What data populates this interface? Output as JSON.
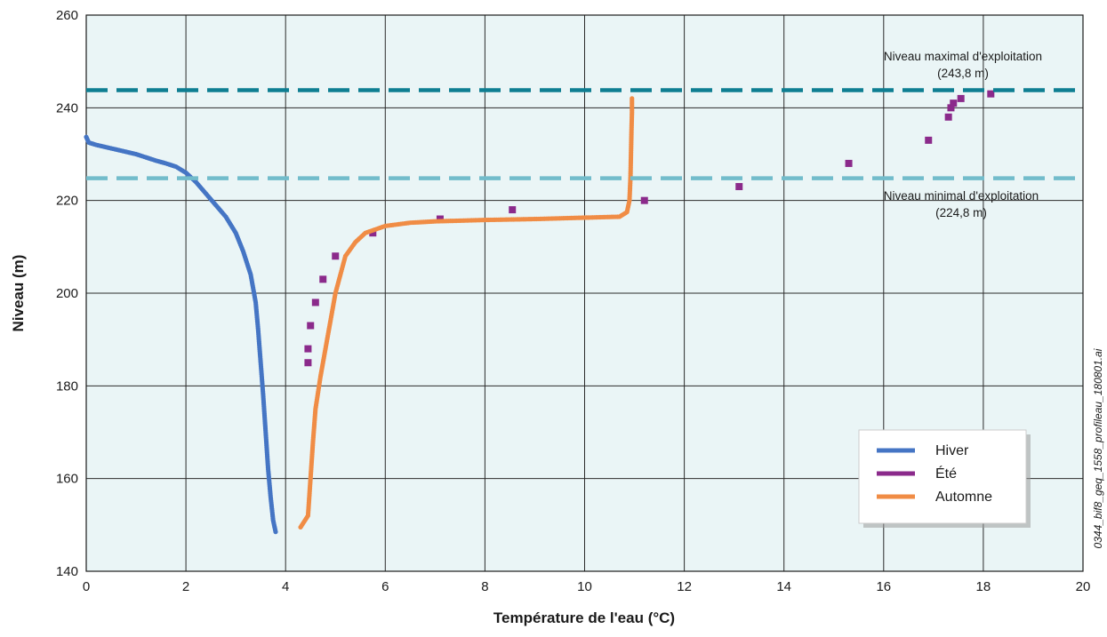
{
  "chart_data": {
    "type": "scatter",
    "xlabel": "Température de l'eau (°C)",
    "ylabel": "Niveau (m)",
    "xlim": [
      0,
      20
    ],
    "ylim": [
      140,
      260
    ],
    "xticks": [
      0,
      2,
      4,
      6,
      8,
      10,
      12,
      14,
      16,
      18,
      20
    ],
    "yticks": [
      140,
      160,
      180,
      200,
      220,
      240,
      260
    ],
    "grid": true,
    "background_color": "#eaf5f6",
    "legend_position": "bottom-right",
    "reference_lines": [
      {
        "y": 243.8,
        "color": "#0e7e92",
        "label_line1": "Niveau maximal d'exploitation",
        "label_line2": "(243,8 m)"
      },
      {
        "y": 224.8,
        "color": "#72bccb",
        "label_line1": "Niveau minimal d'exploitation",
        "label_line2": "(224,8 m)"
      }
    ],
    "series": [
      {
        "name": "Hiver",
        "color": "#4575c4",
        "marker": "dot",
        "points": [
          [
            0.0,
            233.7
          ],
          [
            0.05,
            232.5
          ],
          [
            0.2,
            232.0
          ],
          [
            0.4,
            231.5
          ],
          [
            0.6,
            231.0
          ],
          [
            0.8,
            230.5
          ],
          [
            1.0,
            230.0
          ],
          [
            1.2,
            229.3
          ],
          [
            1.4,
            228.6
          ],
          [
            1.6,
            228.0
          ],
          [
            1.8,
            227.3
          ],
          [
            2.0,
            226.0
          ],
          [
            2.2,
            224.0
          ],
          [
            2.4,
            221.5
          ],
          [
            2.6,
            219.0
          ],
          [
            2.8,
            216.5
          ],
          [
            3.0,
            213.0
          ],
          [
            3.15,
            209.0
          ],
          [
            3.3,
            204.0
          ],
          [
            3.4,
            198.0
          ],
          [
            3.45,
            192.0
          ],
          [
            3.5,
            185.0
          ],
          [
            3.55,
            178.0
          ],
          [
            3.6,
            170.0
          ],
          [
            3.65,
            162.0
          ],
          [
            3.7,
            156.0
          ],
          [
            3.75,
            151.0
          ],
          [
            3.8,
            148.5
          ]
        ]
      },
      {
        "name": "Été",
        "color": "#8b2a8b",
        "marker": "square",
        "points": [
          [
            4.45,
            185.0
          ],
          [
            4.45,
            188.0
          ],
          [
            4.5,
            193.0
          ],
          [
            4.6,
            198.0
          ],
          [
            4.75,
            203.0
          ],
          [
            5.0,
            208.0
          ],
          [
            5.75,
            213.0
          ],
          [
            7.1,
            216.0
          ],
          [
            8.55,
            218.0
          ],
          [
            11.2,
            220.0
          ],
          [
            13.1,
            223.0
          ],
          [
            15.3,
            228.0
          ],
          [
            16.9,
            233.0
          ],
          [
            17.3,
            238.0
          ],
          [
            17.35,
            240.0
          ],
          [
            17.4,
            241.0
          ],
          [
            17.55,
            242.0
          ],
          [
            18.15,
            243.0
          ]
        ]
      },
      {
        "name": "Automne",
        "color": "#f08c45",
        "marker": "dot",
        "points": [
          [
            4.3,
            149.5
          ],
          [
            4.45,
            152.0
          ],
          [
            4.5,
            160.0
          ],
          [
            4.55,
            168.0
          ],
          [
            4.6,
            175.0
          ],
          [
            4.7,
            182.0
          ],
          [
            4.8,
            188.0
          ],
          [
            4.9,
            194.0
          ],
          [
            5.0,
            200.0
          ],
          [
            5.1,
            204.0
          ],
          [
            5.2,
            208.0
          ],
          [
            5.4,
            211.0
          ],
          [
            5.6,
            213.0
          ],
          [
            6.0,
            214.5
          ],
          [
            6.5,
            215.2
          ],
          [
            7.0,
            215.5
          ],
          [
            8.0,
            215.8
          ],
          [
            9.0,
            216.0
          ],
          [
            10.0,
            216.3
          ],
          [
            10.7,
            216.5
          ],
          [
            10.85,
            217.5
          ],
          [
            10.9,
            220.0
          ],
          [
            10.92,
            225.0
          ],
          [
            10.93,
            230.0
          ],
          [
            10.94,
            235.0
          ],
          [
            10.95,
            239.0
          ],
          [
            10.95,
            242.0
          ]
        ]
      }
    ]
  },
  "credit": "0344_bif8_geq_1558_profileau_180801.ai"
}
